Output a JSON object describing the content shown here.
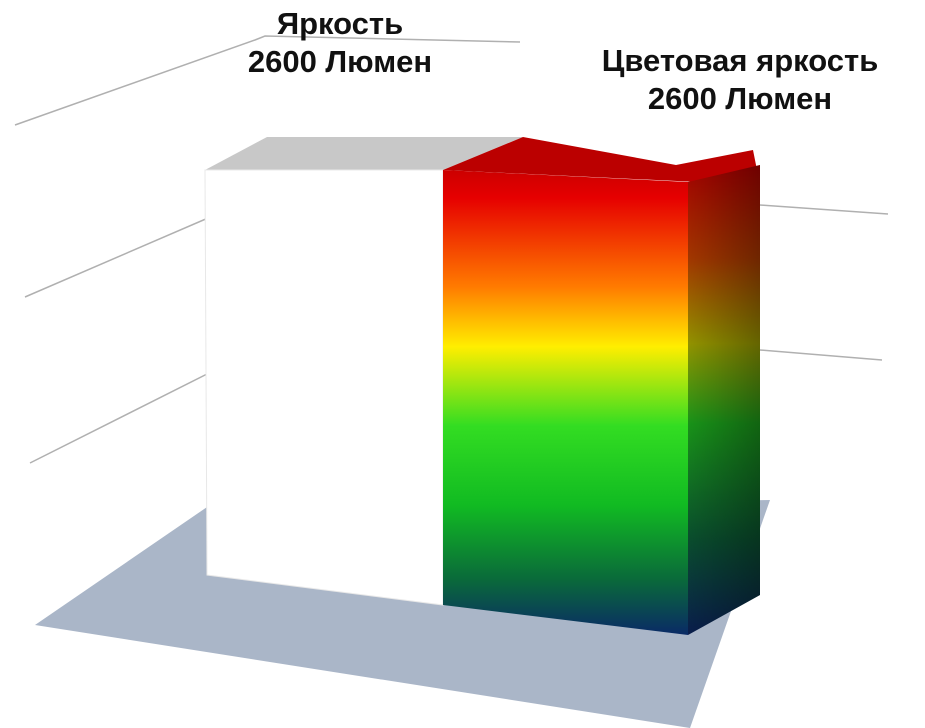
{
  "chart_data": {
    "type": "bar",
    "style": "3d-column",
    "categories": [
      "Яркость",
      "Цветовая яркость"
    ],
    "values": [
      2600,
      2600
    ],
    "unit": "Люмен",
    "data_labels": [
      {
        "name": "Яркость",
        "value_text": "2600 Люмен"
      },
      {
        "name": "Цветовая яркость",
        "value_text": "2600 Люмен"
      }
    ],
    "title": "",
    "xlabel": "",
    "ylabel": "",
    "grid": true,
    "legend": "none",
    "colors": {
      "bar_white": "#ffffff",
      "bar_white_top": "#c8c8c8",
      "gradient_top": "#cc0000",
      "gradient_upper": "#ff8800",
      "gradient_mid": "#ffee00",
      "gradient_lower": "#22cc22",
      "gradient_bottom": "#003366",
      "floor": "#aab6c8",
      "gridline": "#b0b0b0"
    }
  }
}
